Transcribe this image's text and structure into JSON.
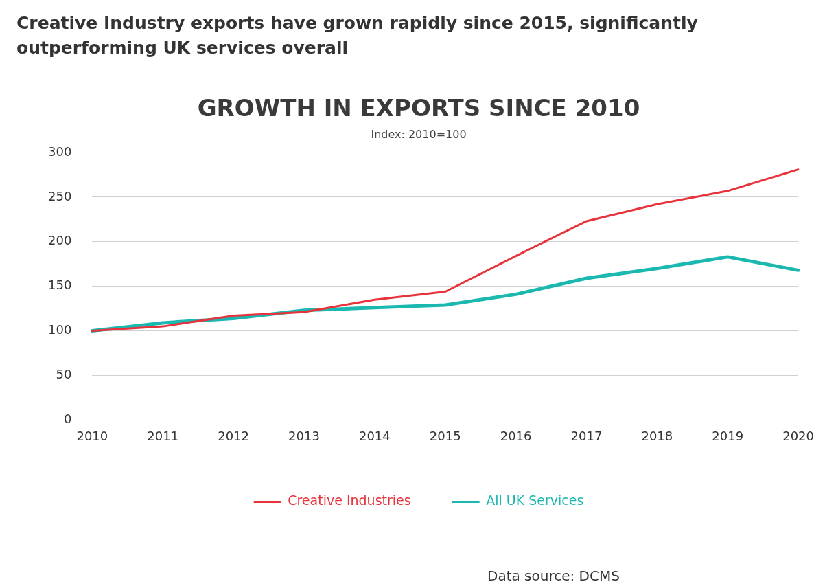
{
  "chart_data": {
    "type": "line",
    "title": "GROWTH IN EXPORTS SINCE 2010",
    "subtitle": "Index: 2010=100",
    "annotations": [
      "Creative Industry exports have grown rapidly since 2015, significantly outperforming UK services overall",
      "Data source: DCMS"
    ],
    "categories": [
      "2010",
      "2011",
      "2012",
      "2013",
      "2014",
      "2015",
      "2016",
      "2017",
      "2018",
      "2019",
      "2020"
    ],
    "series": [
      {
        "name": "Creative Industries",
        "color": "#e8323c",
        "values": [
          100,
          105,
          117,
          121,
          135,
          144,
          184,
          223,
          242,
          257,
          281
        ]
      },
      {
        "name": "All UK Services",
        "color": "#1bb8b0",
        "values": [
          100,
          109,
          114,
          123,
          126,
          129,
          141,
          159,
          170,
          183,
          168
        ]
      }
    ],
    "ylim": [
      0,
      300
    ],
    "yticks": [
      0,
      50,
      100,
      150,
      200,
      250,
      300
    ],
    "grid": "y",
    "legend": "bottom",
    "marker": "none",
    "line_style": "solid"
  }
}
